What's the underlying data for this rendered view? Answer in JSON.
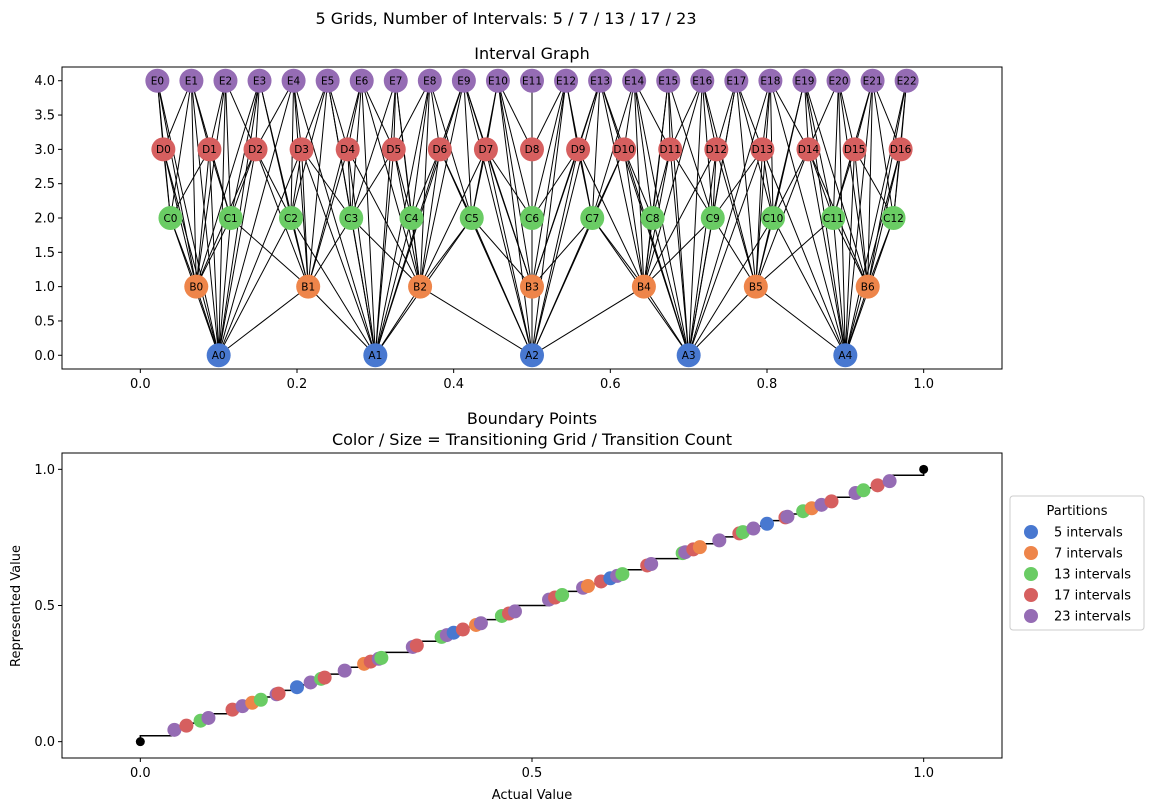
{
  "suptitle": "5 Grids, Number of Intervals: 5 / 7 / 13 / 17 / 23",
  "chart_data": [
    {
      "type": "network",
      "title": "Interval Graph",
      "xlim": [
        -0.1,
        1.1
      ],
      "ylim": [
        -0.2,
        4.2
      ],
      "x_ticks": [
        0.0,
        0.2,
        0.4,
        0.6,
        0.8,
        1.0
      ],
      "x_tick_labels": [
        "0.0",
        "0.2",
        "0.4",
        "0.6",
        "0.8",
        "1.0"
      ],
      "y_ticks": [
        0.0,
        0.5,
        1.0,
        1.5,
        2.0,
        2.5,
        3.0,
        3.5,
        4.0
      ],
      "y_tick_labels": [
        "0.0",
        "0.5",
        "1.0",
        "1.5",
        "2.0",
        "2.5",
        "3.0",
        "3.5",
        "4.0"
      ],
      "levels": [
        {
          "prefix": "A",
          "intervals": 5,
          "y": 0,
          "color": "#4878d0"
        },
        {
          "prefix": "B",
          "intervals": 7,
          "y": 1,
          "color": "#ee854a"
        },
        {
          "prefix": "C",
          "intervals": 13,
          "y": 2,
          "color": "#6acc64"
        },
        {
          "prefix": "D",
          "intervals": 17,
          "y": 3,
          "color": "#d65f5f"
        },
        {
          "prefix": "E",
          "intervals": 23,
          "y": 4,
          "color": "#956cb4"
        }
      ],
      "edge_rule": "nodes in different levels are connected when their intervals overlap"
    },
    {
      "type": "scatter",
      "title": "Boundary Points",
      "subtitle": "Color / Size = Transitioning Grid / Transition Count",
      "xlabel": "Actual Value",
      "ylabel": "Represented Value",
      "xlim": [
        -0.1,
        1.1
      ],
      "ylim": [
        -0.06,
        1.06
      ],
      "x_ticks": [
        0.0,
        0.5,
        1.0
      ],
      "x_tick_labels": [
        "0.0",
        "0.5",
        "1.0"
      ],
      "y_ticks": [
        0.0,
        0.5,
        1.0
      ],
      "y_tick_labels": [
        "0.0",
        "0.5",
        "1.0"
      ],
      "endpoints": [
        [
          0,
          0
        ],
        [
          1,
          1
        ]
      ],
      "legend": {
        "title": "Partitions",
        "placement": "right",
        "entries": [
          {
            "label": "5 intervals",
            "intervals": 5,
            "color": "#4878d0"
          },
          {
            "label": "7 intervals",
            "intervals": 7,
            "color": "#ee854a"
          },
          {
            "label": "13 intervals",
            "intervals": 13,
            "color": "#6acc64"
          },
          {
            "label": "17 intervals",
            "intervals": 17,
            "color": "#d65f5f"
          },
          {
            "label": "23 intervals",
            "intervals": 23,
            "color": "#956cb4"
          }
        ]
      }
    }
  ]
}
